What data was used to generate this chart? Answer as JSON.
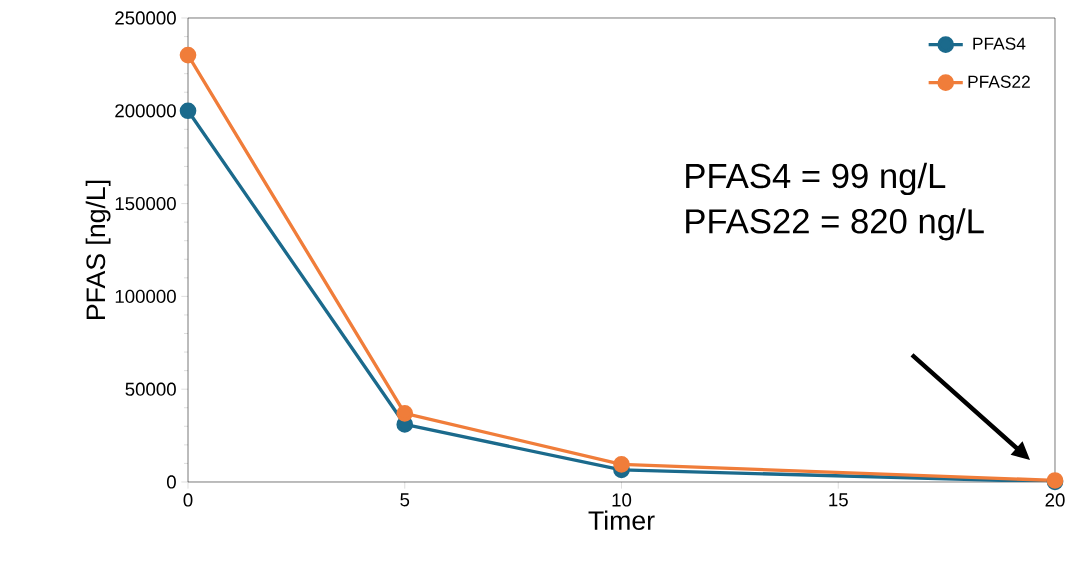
{
  "chart_data": {
    "type": "line",
    "xlabel": "Timer",
    "ylabel": "PFAS [ng/L]",
    "x": [
      0,
      5,
      10,
      20
    ],
    "series": [
      {
        "name": "PFAS4",
        "color": "#1b6a8c",
        "values": [
          200000,
          31000,
          6500,
          99
        ]
      },
      {
        "name": "PFAS22",
        "color": "#f07d3a",
        "values": [
          230000,
          37000,
          9500,
          820
        ]
      }
    ],
    "xlim": [
      0,
      20
    ],
    "xticks": [
      0,
      5,
      10,
      15,
      20
    ],
    "ylim": [
      0,
      250000
    ],
    "yticks": [
      0,
      50000,
      100000,
      150000,
      200000,
      250000
    ],
    "grid": false,
    "legend": "top right",
    "marker": "circle",
    "line_style": "solid",
    "annotations": [
      "PFAS4 = 99 ng/L",
      "PFAS22 = 820 ng/L"
    ]
  }
}
